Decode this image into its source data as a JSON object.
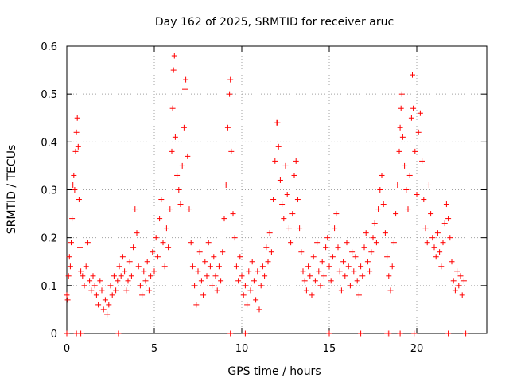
{
  "chart_data": {
    "type": "scatter",
    "title": "Day 162 of 2025, SRMTID for receiver aruc",
    "xlabel": "GPS time / hours",
    "ylabel": "SRMTID / TECUs",
    "xlim": [
      0,
      24
    ],
    "ylim": [
      0,
      0.6
    ],
    "xticks": [
      0,
      5,
      10,
      15,
      20
    ],
    "yticks": [
      0,
      0.1,
      0.2,
      0.3,
      0.4,
      0.5,
      0.6
    ],
    "xtick_labels": [
      "0",
      "5",
      "10",
      "15",
      "20"
    ],
    "ytick_labels": [
      "0",
      "0.1",
      "0.2",
      "0.3",
      "0.4",
      "0.5",
      "0.6"
    ],
    "grid": true,
    "marker": "+",
    "marker_color": "#ff0000",
    "series": [
      {
        "name": "SRMTID",
        "points": [
          [
            0.0,
            0.08
          ],
          [
            0.05,
            0.07
          ],
          [
            0.1,
            0.12
          ],
          [
            0.15,
            0.16
          ],
          [
            0.2,
            0.14
          ],
          [
            0.25,
            0.19
          ],
          [
            0.3,
            0.24
          ],
          [
            0.35,
            0.31
          ],
          [
            0.4,
            0.33
          ],
          [
            0.45,
            0.3
          ],
          [
            0.5,
            0.38
          ],
          [
            0.55,
            0.42
          ],
          [
            0.6,
            0.45
          ],
          [
            0.65,
            0.39
          ],
          [
            0.7,
            0.28
          ],
          [
            0.75,
            0.18
          ],
          [
            0.8,
            0.13
          ],
          [
            0.9,
            0.12
          ],
          [
            1.0,
            0.1
          ],
          [
            1.1,
            0.14
          ],
          [
            1.2,
            0.19
          ],
          [
            1.3,
            0.11
          ],
          [
            1.4,
            0.09
          ],
          [
            1.5,
            0.12
          ],
          [
            1.6,
            0.1
          ],
          [
            1.7,
            0.08
          ],
          [
            1.8,
            0.06
          ],
          [
            1.9,
            0.11
          ],
          [
            2.0,
            0.09
          ],
          [
            2.1,
            0.05
          ],
          [
            2.2,
            0.07
          ],
          [
            2.3,
            0.04
          ],
          [
            2.4,
            0.06
          ],
          [
            2.5,
            0.1
          ],
          [
            2.6,
            0.08
          ],
          [
            2.7,
            0.12
          ],
          [
            2.8,
            0.09
          ],
          [
            2.9,
            0.11
          ],
          [
            3.0,
            0.14
          ],
          [
            3.1,
            0.12
          ],
          [
            3.2,
            0.16
          ],
          [
            3.3,
            0.13
          ],
          [
            3.4,
            0.09
          ],
          [
            3.5,
            0.11
          ],
          [
            3.6,
            0.15
          ],
          [
            3.7,
            0.12
          ],
          [
            3.8,
            0.18
          ],
          [
            3.9,
            0.26
          ],
          [
            4.0,
            0.21
          ],
          [
            4.1,
            0.14
          ],
          [
            4.2,
            0.1
          ],
          [
            4.3,
            0.08
          ],
          [
            4.4,
            0.13
          ],
          [
            4.5,
            0.11
          ],
          [
            4.6,
            0.15
          ],
          [
            4.7,
            0.09
          ],
          [
            4.8,
            0.12
          ],
          [
            4.9,
            0.17
          ],
          [
            5.0,
            0.13
          ],
          [
            5.1,
            0.2
          ],
          [
            5.2,
            0.16
          ],
          [
            5.3,
            0.24
          ],
          [
            5.4,
            0.28
          ],
          [
            5.5,
            0.19
          ],
          [
            5.6,
            0.14
          ],
          [
            5.7,
            0.22
          ],
          [
            5.8,
            0.18
          ],
          [
            5.9,
            0.26
          ],
          [
            6.0,
            0.38
          ],
          [
            6.05,
            0.47
          ],
          [
            6.1,
            0.55
          ],
          [
            6.15,
            0.58
          ],
          [
            6.2,
            0.41
          ],
          [
            6.3,
            0.33
          ],
          [
            6.4,
            0.3
          ],
          [
            6.5,
            0.27
          ],
          [
            6.6,
            0.35
          ],
          [
            6.7,
            0.43
          ],
          [
            6.75,
            0.51
          ],
          [
            6.8,
            0.53
          ],
          [
            6.9,
            0.37
          ],
          [
            7.0,
            0.26
          ],
          [
            7.1,
            0.19
          ],
          [
            7.2,
            0.14
          ],
          [
            7.3,
            0.1
          ],
          [
            7.4,
            0.06
          ],
          [
            7.5,
            0.13
          ],
          [
            7.6,
            0.17
          ],
          [
            7.7,
            0.11
          ],
          [
            7.8,
            0.08
          ],
          [
            7.9,
            0.15
          ],
          [
            8.0,
            0.12
          ],
          [
            8.1,
            0.19
          ],
          [
            8.2,
            0.14
          ],
          [
            8.3,
            0.1
          ],
          [
            8.4,
            0.16
          ],
          [
            8.5,
            0.12
          ],
          [
            8.6,
            0.09
          ],
          [
            8.7,
            0.14
          ],
          [
            8.8,
            0.11
          ],
          [
            8.9,
            0.17
          ],
          [
            9.0,
            0.24
          ],
          [
            9.1,
            0.31
          ],
          [
            9.2,
            0.43
          ],
          [
            9.3,
            0.5
          ],
          [
            9.35,
            0.53
          ],
          [
            9.4,
            0.38
          ],
          [
            9.5,
            0.25
          ],
          [
            9.6,
            0.2
          ],
          [
            9.7,
            0.14
          ],
          [
            9.8,
            0.11
          ],
          [
            9.9,
            0.16
          ],
          [
            10.0,
            0.12
          ],
          [
            10.1,
            0.08
          ],
          [
            10.2,
            0.1
          ],
          [
            10.3,
            0.06
          ],
          [
            10.4,
            0.13
          ],
          [
            10.5,
            0.09
          ],
          [
            10.6,
            0.15
          ],
          [
            10.7,
            0.11
          ],
          [
            10.8,
            0.07
          ],
          [
            10.9,
            0.13
          ],
          [
            11.0,
            0.05
          ],
          [
            11.1,
            0.1
          ],
          [
            11.2,
            0.14
          ],
          [
            11.3,
            0.12
          ],
          [
            11.4,
            0.18
          ],
          [
            11.5,
            0.15
          ],
          [
            11.6,
            0.21
          ],
          [
            11.7,
            0.17
          ],
          [
            11.8,
            0.28
          ],
          [
            11.9,
            0.36
          ],
          [
            12.0,
            0.44
          ],
          [
            12.05,
            0.44
          ],
          [
            12.1,
            0.39
          ],
          [
            12.2,
            0.32
          ],
          [
            12.3,
            0.27
          ],
          [
            12.4,
            0.24
          ],
          [
            12.5,
            0.35
          ],
          [
            12.6,
            0.29
          ],
          [
            12.7,
            0.22
          ],
          [
            12.8,
            0.19
          ],
          [
            12.9,
            0.25
          ],
          [
            13.0,
            0.33
          ],
          [
            13.1,
            0.36
          ],
          [
            13.2,
            0.28
          ],
          [
            13.3,
            0.22
          ],
          [
            13.4,
            0.17
          ],
          [
            13.5,
            0.13
          ],
          [
            13.6,
            0.11
          ],
          [
            13.7,
            0.09
          ],
          [
            13.8,
            0.14
          ],
          [
            13.9,
            0.12
          ],
          [
            14.0,
            0.08
          ],
          [
            14.1,
            0.16
          ],
          [
            14.2,
            0.11
          ],
          [
            14.3,
            0.19
          ],
          [
            14.4,
            0.13
          ],
          [
            14.5,
            0.1
          ],
          [
            14.6,
            0.15
          ],
          [
            14.7,
            0.12
          ],
          [
            14.8,
            0.18
          ],
          [
            14.9,
            0.2
          ],
          [
            15.0,
            0.14
          ],
          [
            15.1,
            0.11
          ],
          [
            15.2,
            0.16
          ],
          [
            15.3,
            0.22
          ],
          [
            15.4,
            0.25
          ],
          [
            15.5,
            0.18
          ],
          [
            15.6,
            0.13
          ],
          [
            15.7,
            0.09
          ],
          [
            15.8,
            0.15
          ],
          [
            15.9,
            0.12
          ],
          [
            16.0,
            0.19
          ],
          [
            16.1,
            0.14
          ],
          [
            16.2,
            0.1
          ],
          [
            16.3,
            0.17
          ],
          [
            16.4,
            0.13
          ],
          [
            16.5,
            0.16
          ],
          [
            16.6,
            0.11
          ],
          [
            16.7,
            0.08
          ],
          [
            16.8,
            0.14
          ],
          [
            16.9,
            0.12
          ],
          [
            17.0,
            0.18
          ],
          [
            17.1,
            0.21
          ],
          [
            17.2,
            0.15
          ],
          [
            17.3,
            0.13
          ],
          [
            17.4,
            0.17
          ],
          [
            17.5,
            0.2
          ],
          [
            17.6,
            0.23
          ],
          [
            17.7,
            0.19
          ],
          [
            17.8,
            0.26
          ],
          [
            17.9,
            0.3
          ],
          [
            18.0,
            0.33
          ],
          [
            18.1,
            0.27
          ],
          [
            18.2,
            0.21
          ],
          [
            18.3,
            0.16
          ],
          [
            18.4,
            0.12
          ],
          [
            18.5,
            0.09
          ],
          [
            18.6,
            0.14
          ],
          [
            18.7,
            0.19
          ],
          [
            18.8,
            0.25
          ],
          [
            18.9,
            0.31
          ],
          [
            19.0,
            0.38
          ],
          [
            19.05,
            0.43
          ],
          [
            19.1,
            0.47
          ],
          [
            19.15,
            0.5
          ],
          [
            19.2,
            0.41
          ],
          [
            19.3,
            0.35
          ],
          [
            19.4,
            0.3
          ],
          [
            19.5,
            0.26
          ],
          [
            19.6,
            0.33
          ],
          [
            19.7,
            0.45
          ],
          [
            19.75,
            0.54
          ],
          [
            19.8,
            0.47
          ],
          [
            19.9,
            0.38
          ],
          [
            20.0,
            0.29
          ],
          [
            20.1,
            0.42
          ],
          [
            20.2,
            0.46
          ],
          [
            20.3,
            0.36
          ],
          [
            20.4,
            0.28
          ],
          [
            20.5,
            0.22
          ],
          [
            20.6,
            0.19
          ],
          [
            20.7,
            0.31
          ],
          [
            20.8,
            0.25
          ],
          [
            20.9,
            0.2
          ],
          [
            21.0,
            0.18
          ],
          [
            21.1,
            0.16
          ],
          [
            21.2,
            0.21
          ],
          [
            21.3,
            0.17
          ],
          [
            21.4,
            0.14
          ],
          [
            21.5,
            0.19
          ],
          [
            21.6,
            0.23
          ],
          [
            21.7,
            0.27
          ],
          [
            21.8,
            0.24
          ],
          [
            21.9,
            0.2
          ],
          [
            22.0,
            0.15
          ],
          [
            22.1,
            0.11
          ],
          [
            22.2,
            0.09
          ],
          [
            22.3,
            0.13
          ],
          [
            22.4,
            0.1
          ],
          [
            22.5,
            0.12
          ],
          [
            22.6,
            0.08
          ],
          [
            22.7,
            0.11
          ],
          [
            0.0,
            0.0
          ],
          [
            0.55,
            0.0
          ],
          [
            0.8,
            0.0
          ],
          [
            2.95,
            0.0
          ],
          [
            9.35,
            0.0
          ],
          [
            10.2,
            0.0
          ],
          [
            15.0,
            0.0
          ],
          [
            16.8,
            0.0
          ],
          [
            18.3,
            0.0
          ],
          [
            18.4,
            0.0
          ],
          [
            19.05,
            0.0
          ],
          [
            19.85,
            0.0
          ],
          [
            21.8,
            0.0
          ],
          [
            22.8,
            0.0
          ]
        ]
      }
    ]
  }
}
